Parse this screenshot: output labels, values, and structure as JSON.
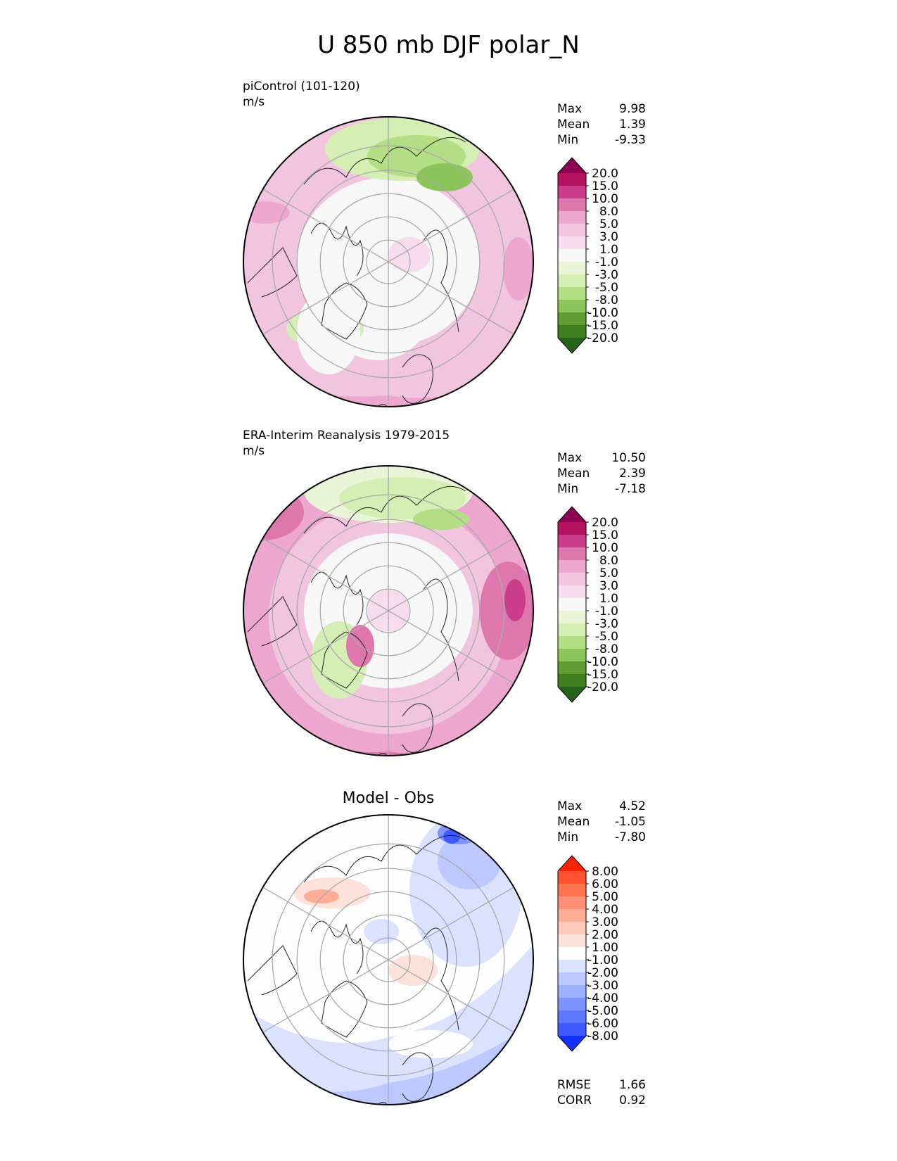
{
  "title": "U 850 mb DJF polar_N",
  "panels": [
    {
      "title": "piControl (101-120)",
      "units": "m/s",
      "stats": [
        {
          "label": "Max",
          "value": "9.98"
        },
        {
          "label": "Mean",
          "value": "1.39"
        },
        {
          "label": "Min",
          "value": "-9.33"
        }
      ]
    },
    {
      "title": "ERA-Interim Reanalysis 1979-2015",
      "units": "m/s",
      "stats": [
        {
          "label": "Max",
          "value": "10.50"
        },
        {
          "label": "Mean",
          "value": "2.39"
        },
        {
          "label": "Min",
          "value": "-7.18"
        }
      ]
    },
    {
      "title": "Model - Obs",
      "stats": [
        {
          "label": "Max",
          "value": "4.52"
        },
        {
          "label": "Mean",
          "value": "-1.05"
        },
        {
          "label": "Min",
          "value": "-7.80"
        }
      ],
      "metrics": [
        {
          "label": "RMSE",
          "value": "1.66"
        },
        {
          "label": "CORR",
          "value": "0.92"
        }
      ]
    }
  ],
  "colorbars": {
    "field": {
      "labels": [
        "20.0",
        "15.0",
        "10.0",
        "8.0",
        "5.0",
        "3.0",
        "1.0",
        "-1.0",
        "-3.0",
        "-5.0",
        "-8.0",
        "-10.0",
        "-15.0",
        "-20.0"
      ],
      "colors": [
        "#8e0152",
        "#b4115e",
        "#cc3e8c",
        "#de77ae",
        "#eda6cf",
        "#f1c4e0",
        "#f8dced",
        "#f7f7f7",
        "#eaf5d7",
        "#d4eeb4",
        "#b4de85",
        "#8bc55a",
        "#5e9e32",
        "#3d7f1d",
        "#276419"
      ]
    },
    "diff": {
      "labels": [
        "8.00",
        "6.00",
        "5.00",
        "4.00",
        "3.00",
        "2.00",
        "1.00",
        "-1.00",
        "-2.00",
        "-3.00",
        "-4.00",
        "-5.00",
        "-6.00",
        "-8.00"
      ],
      "colors": [
        "#ff2200",
        "#ff5030",
        "#ff7353",
        "#ff8f75",
        "#ffac96",
        "#ffc9ba",
        "#fde2db",
        "#fefefe",
        "#dbe2ff",
        "#bcc9ff",
        "#9daeff",
        "#7d93ff",
        "#5f78ff",
        "#3d59ff",
        "#1230ff"
      ]
    }
  },
  "chart_data": [
    {
      "type": "heatmap",
      "title": "piControl (101-120)",
      "units": "m/s",
      "projection": "north polar stereographic",
      "levels": [
        -20,
        -15,
        -10,
        -8,
        -5,
        -3,
        -1,
        1,
        3,
        5,
        8,
        10,
        15,
        20
      ],
      "max": 9.98,
      "mean": 1.39,
      "min": -9.33
    },
    {
      "type": "heatmap",
      "title": "ERA-Interim Reanalysis 1979-2015",
      "units": "m/s",
      "projection": "north polar stereographic",
      "levels": [
        -20,
        -15,
        -10,
        -8,
        -5,
        -3,
        -1,
        1,
        3,
        5,
        8,
        10,
        15,
        20
      ],
      "max": 10.5,
      "mean": 2.39,
      "min": -7.18
    },
    {
      "type": "heatmap",
      "title": "Model - Obs",
      "projection": "north polar stereographic",
      "levels": [
        -8,
        -6,
        -5,
        -4,
        -3,
        -2,
        -1,
        1,
        2,
        3,
        4,
        5,
        6,
        8
      ],
      "max": 4.52,
      "mean": -1.05,
      "min": -7.8,
      "rmse": 1.66,
      "corr": 0.92
    }
  ]
}
